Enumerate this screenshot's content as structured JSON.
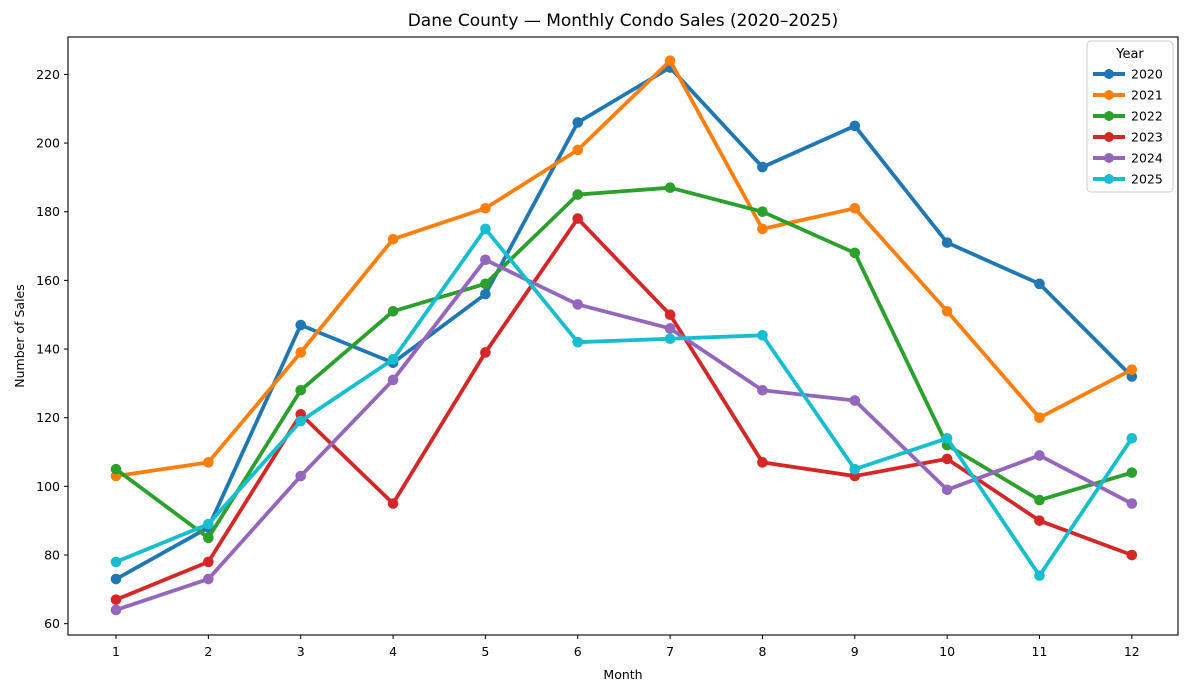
{
  "figure": {
    "background": "#ffffff"
  },
  "chart_data": {
    "type": "line",
    "title": "Dane County — Monthly Condo Sales (2020–2025)",
    "xlabel": "Month",
    "ylabel": "Number of Sales",
    "legend_title": "Year",
    "legend_position": "upper right",
    "grid": false,
    "x": [
      1,
      2,
      3,
      4,
      5,
      6,
      7,
      8,
      9,
      10,
      11,
      12
    ],
    "xticks": [
      1,
      2,
      3,
      4,
      5,
      6,
      7,
      8,
      9,
      10,
      11,
      12
    ],
    "yticks": [
      60,
      80,
      100,
      120,
      140,
      160,
      180,
      200,
      220
    ],
    "xlim": [
      0.48,
      12.5
    ],
    "ylim": [
      56.7,
      230.9
    ],
    "marker": "circle",
    "series": [
      {
        "name": "2020",
        "color": "#1f77b4",
        "values": [
          73,
          88,
          147,
          136,
          156,
          206,
          222,
          193,
          205,
          171,
          159,
          132
        ]
      },
      {
        "name": "2021",
        "color": "#ff7f0e",
        "values": [
          103,
          107,
          139,
          172,
          181,
          198,
          224,
          175,
          181,
          151,
          120,
          134
        ]
      },
      {
        "name": "2022",
        "color": "#2ca02c",
        "values": [
          105,
          85,
          128,
          151,
          159,
          185,
          187,
          180,
          168,
          112,
          96,
          104
        ]
      },
      {
        "name": "2023",
        "color": "#d62728",
        "values": [
          67,
          78,
          121,
          95,
          139,
          178,
          150,
          107,
          103,
          108,
          90,
          80
        ]
      },
      {
        "name": "2024",
        "color": "#9467bd",
        "values": [
          64,
          73,
          103,
          131,
          166,
          153,
          146,
          128,
          125,
          99,
          109,
          95
        ]
      },
      {
        "name": "2025",
        "color": "#17becf",
        "values": [
          78,
          89,
          119,
          137,
          175,
          142,
          143,
          144,
          105,
          114,
          74,
          114
        ]
      }
    ]
  }
}
